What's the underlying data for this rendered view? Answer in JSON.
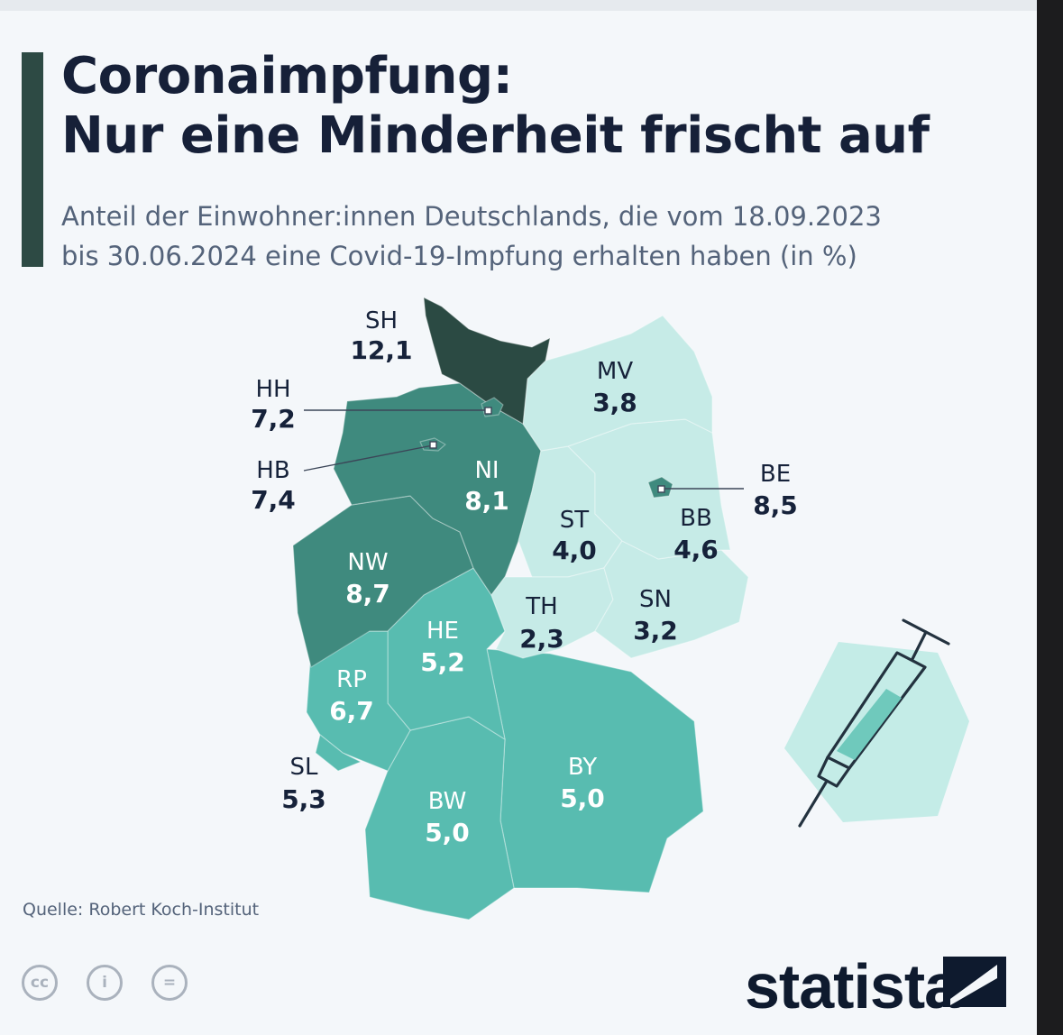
{
  "title_lines": [
    "Coronaimpfung:",
    "Nur eine Minderheit frischt auf"
  ],
  "subtitle_lines": [
    "Anteil der Einwohner:innen Deutschlands, die vom 18.09.2023",
    "bis 30.06.2024 eine Covid-19-Impfung erhalten haben (in %)"
  ],
  "source": "Quelle: Robert Koch-Institut",
  "logo_text": "statista",
  "license_icons": [
    "cc-icon",
    "person-icon",
    "equals-icon"
  ],
  "license_labels": [
    "cc",
    "i",
    "="
  ],
  "colors": {
    "darkest": "#2b4a43",
    "dark": "#3f8a7e",
    "mid": "#58bcb0",
    "light": "#c6ebe7",
    "text_dark": "#16223a",
    "text_light": "#ffffff"
  },
  "states": [
    {
      "code": "SH",
      "value": "12,1",
      "display": "12,1",
      "num": 12.1
    },
    {
      "code": "HH",
      "value": "7,2",
      "display": "7,2",
      "num": 7.2
    },
    {
      "code": "HB",
      "value": "7,4",
      "display": "7,4",
      "num": 7.4
    },
    {
      "code": "NI",
      "value": "8,1",
      "display": "8,1",
      "num": 8.1
    },
    {
      "code": "MV",
      "value": "3,8",
      "display": "3,8",
      "num": 3.8
    },
    {
      "code": "BE",
      "value": "8,5",
      "display": "8,5",
      "num": 8.5
    },
    {
      "code": "BB",
      "value": "4,6",
      "display": "4,6",
      "num": 4.6
    },
    {
      "code": "ST",
      "value": "4,0",
      "display": "4,0",
      "num": 4.0
    },
    {
      "code": "NW",
      "value": "8,7",
      "display": "8,7",
      "num": 8.7
    },
    {
      "code": "TH",
      "value": "2,3",
      "display": "2,3",
      "num": 2.3
    },
    {
      "code": "SN",
      "value": "3,2",
      "display": "3,2",
      "num": 3.2
    },
    {
      "code": "HE",
      "value": "5,2",
      "display": "5,2",
      "num": 5.2
    },
    {
      "code": "RP",
      "value": "6,7",
      "display": "6,7",
      "num": 6.7
    },
    {
      "code": "SL",
      "value": "5,3",
      "display": "5,3",
      "num": 5.3
    },
    {
      "code": "BW",
      "value": "5,0",
      "display": "5,0",
      "num": 5.0
    },
    {
      "code": "BY",
      "value": "5,0",
      "display": "5,0",
      "num": 5.0
    }
  ]
}
